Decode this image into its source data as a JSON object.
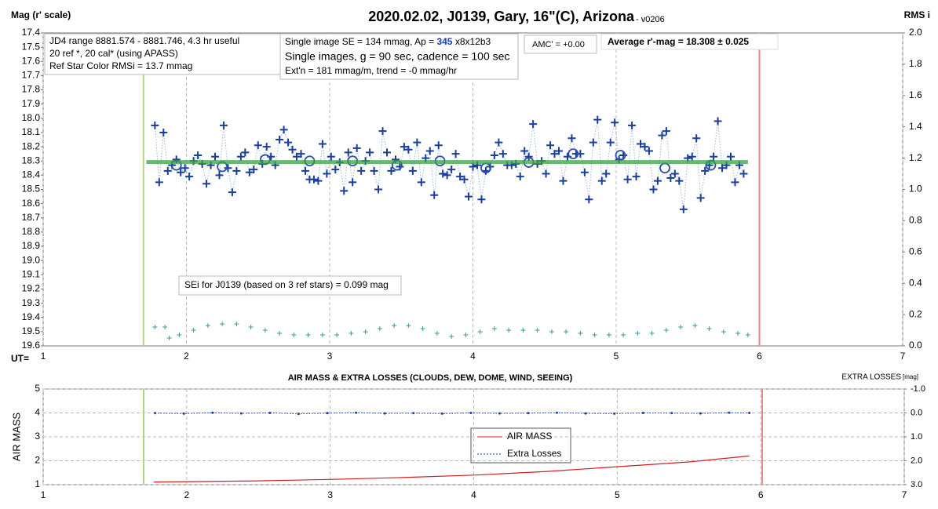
{
  "chart_data": [
    {
      "type": "scatter",
      "title": "2020.02.02, J0139, Gary, 16\"(C), Arizona",
      "subtitle": " - v0206",
      "y_label": "Mag (r' scale)",
      "y2_label": "RMS i",
      "x_label": "UT=",
      "xlim": [
        1,
        7
      ],
      "xticks": [
        1,
        2,
        3,
        4,
        5,
        6,
        7
      ],
      "ylim": [
        17.4,
        19.6
      ],
      "y_inverted": true,
      "yticks": [
        17.4,
        17.5,
        17.6,
        17.7,
        17.8,
        17.9,
        {
          "value": 18,
          "label": "18.0"
        },
        18.1,
        18.2,
        18.3,
        18.4,
        18.5,
        18.6,
        18.7,
        18.8,
        18.9,
        {
          "value": 19,
          "label": "19.0"
        },
        19.1,
        19.2,
        19.3,
        19.4,
        19.5,
        19.6
      ],
      "y2lim": [
        0,
        2
      ],
      "y2_inverted": false,
      "y2ticks": [
        {
          "value": 0,
          "label": "0.0"
        },
        0.2,
        0.4,
        0.6,
        0.8,
        {
          "value": 1,
          "label": "1.0"
        },
        1.2,
        1.4,
        1.6,
        1.8,
        {
          "value": 2,
          "label": "2.0"
        }
      ],
      "xgrid": true,
      "ygrid": false,
      "vlines": [
        {
          "x": 1.7,
          "color": "#a8d88a"
        },
        {
          "x": 6.0,
          "color": "#e88a8a"
        }
      ],
      "annotations": {
        "jd_range": "JD4 range 8881.574 - 8881.746, 4.3 hr useful",
        "refs": "20 ref *, 20 cal* (using APASS)",
        "color_rms": "Ref Star Color RMSi = 13.7 mmag",
        "se_a": "Single image SE = 134 mmag, Ap = ",
        "se_b": "345",
        "se_c": " x8x12b3",
        "single": "Single images, g = 90 sec, cadence = 100 sec",
        "ext": "Ext'n = 181 mmag/m, trend = -0 mmag/hr",
        "amc": "AMC' = +0.00",
        "average": "Average r'-mag =  18.308 ± 0.025",
        "sei": "SEi for J0139 (based on 3 ref stars) = 0.099 mag"
      },
      "series": [
        {
          "color": "#1a3f9a",
          "marker": "plus",
          "line": "dotted",
          "line_color": "#9bb8e0",
          "x": [
            1.78,
            1.81,
            1.84,
            1.87,
            1.9,
            1.93,
            1.96,
            1.99,
            2.02,
            2.05,
            2.08,
            2.11,
            2.14,
            2.17,
            2.2,
            2.23,
            2.26,
            2.29,
            2.32,
            2.35,
            2.38,
            2.41,
            2.44,
            2.47,
            2.5,
            2.53,
            2.56,
            2.59,
            2.62,
            2.65,
            2.68,
            2.71,
            2.74,
            2.77,
            2.8,
            2.83,
            2.86,
            2.89,
            2.92,
            2.95,
            2.98,
            3.01,
            3.04,
            3.07,
            3.1,
            3.13,
            3.16,
            3.19,
            3.22,
            3.25,
            3.28,
            3.31,
            3.34,
            3.37,
            3.4,
            3.43,
            3.46,
            3.49,
            3.52,
            3.55,
            3.58,
            3.61,
            3.64,
            3.67,
            3.7,
            3.73,
            3.76,
            3.79,
            3.82,
            3.85,
            3.88,
            3.91,
            3.94,
            3.97,
            4.0,
            4.03,
            4.06,
            4.09,
            4.12,
            4.15,
            4.18,
            4.21,
            4.24,
            4.27,
            4.3,
            4.33,
            4.36,
            4.39,
            4.42,
            4.45,
            4.48,
            4.51,
            4.54,
            4.57,
            4.6,
            4.63,
            4.66,
            4.69,
            4.72,
            4.75,
            4.78,
            4.81,
            4.84,
            4.87,
            4.9,
            4.93,
            4.96,
            4.99,
            5.02,
            5.05,
            5.08,
            5.11,
            5.14,
            5.17,
            5.2,
            5.23,
            5.26,
            5.29,
            5.32,
            5.35,
            5.38,
            5.41,
            5.44,
            5.47,
            5.5,
            5.53,
            5.56,
            5.59,
            5.62,
            5.65,
            5.68,
            5.71,
            5.74,
            5.77,
            5.8,
            5.83,
            5.86,
            5.89
          ],
          "values": [
            18.05,
            18.45,
            18.1,
            18.37,
            18.33,
            18.29,
            18.38,
            18.35,
            18.41,
            18.3,
            18.26,
            18.32,
            18.46,
            18.33,
            18.27,
            18.4,
            18.05,
            18.35,
            18.52,
            18.37,
            18.27,
            18.24,
            18.38,
            18.36,
            18.19,
            18.32,
            18.2,
            18.27,
            18.33,
            18.15,
            18.08,
            18.17,
            18.22,
            18.27,
            18.25,
            18.37,
            18.43,
            18.43,
            18.44,
            18.18,
            18.39,
            18.27,
            18.36,
            18.31,
            18.51,
            18.24,
            18.45,
            18.21,
            18.37,
            18.3,
            18.24,
            18.37,
            18.5,
            18.09,
            18.24,
            18.37,
            18.29,
            18.34,
            18.2,
            18.22,
            18.37,
            18.17,
            18.45,
            18.28,
            18.23,
            18.54,
            18.19,
            18.39,
            18.4,
            18.36,
            18.25,
            18.41,
            18.43,
            18.55,
            18.34,
            18.33,
            18.57,
            18.37,
            18.34,
            18.26,
            18.17,
            18.25,
            18.33,
            18.33,
            18.32,
            18.41,
            18.23,
            18.27,
            18.04,
            18.32,
            18.3,
            18.39,
            18.19,
            18.25,
            18.23,
            18.44,
            18.27,
            18.14,
            18.25,
            18.25,
            18.38,
            18.57,
            18.17,
            18.01,
            18.44,
            18.39,
            18.17,
            18.03,
            18.29,
            18.26,
            18.43,
            18.05,
            18.41,
            18.18,
            18.2,
            18.23,
            18.5,
            18.44,
            18.12,
            18.09,
            18.42,
            18.39,
            18.44,
            18.64,
            18.28,
            18.27,
            18.14,
            18.56,
            18.37,
            18.33,
            18.27,
            18.02,
            18.35,
            18.33,
            18.27,
            18.45,
            18.33,
            18.39
          ]
        },
        {
          "color": "#2a4fb0",
          "marker": "circle",
          "x": [
            1.93,
            2.25,
            2.55,
            2.86,
            3.16,
            3.47,
            3.77,
            4.09,
            4.39,
            4.7,
            5.03,
            5.34,
            5.66
          ],
          "values": [
            18.33,
            18.34,
            18.29,
            18.3,
            18.3,
            18.33,
            18.3,
            18.35,
            18.31,
            18.25,
            18.26,
            18.35,
            18.33
          ]
        },
        {
          "color": "#3aa040",
          "marker": "none",
          "line": "solid",
          "width": 5,
          "x": [
            1.72,
            5.92
          ],
          "values": [
            18.308,
            18.308
          ]
        },
        {
          "color": "#3a9a9a",
          "marker": "smallplus",
          "axis": "y2",
          "x": [
            1.78,
            1.85,
            1.88,
            1.95,
            2.05,
            2.15,
            2.25,
            2.35,
            2.45,
            2.55,
            2.65,
            2.75,
            2.85,
            2.95,
            3.05,
            3.15,
            3.25,
            3.35,
            3.45,
            3.55,
            3.65,
            3.75,
            3.85,
            3.95,
            4.05,
            4.15,
            4.25,
            4.35,
            4.45,
            4.55,
            4.65,
            4.75,
            4.85,
            4.95,
            5.05,
            5.15,
            5.25,
            5.35,
            5.45,
            5.55,
            5.65,
            5.75,
            5.85,
            5.92
          ],
          "values": [
            0.12,
            0.12,
            0.05,
            0.07,
            0.1,
            0.13,
            0.14,
            0.14,
            0.12,
            0.1,
            0.08,
            0.07,
            0.07,
            0.07,
            0.07,
            0.08,
            0.09,
            0.11,
            0.13,
            0.13,
            0.11,
            0.08,
            0.06,
            0.07,
            0.09,
            0.11,
            0.1,
            0.1,
            0.1,
            0.09,
            0.09,
            0.08,
            0.07,
            0.07,
            0.07,
            0.08,
            0.08,
            0.1,
            0.12,
            0.13,
            0.11,
            0.09,
            0.08,
            0.07
          ]
        }
      ]
    },
    {
      "type": "line",
      "title": "AIR MASS & EXTRA LOSSES (CLOUDS, DEW, DOME, WIND, SEEING)",
      "y_label": "AIR MASS",
      "y2_label": "EXTRA LOSSES",
      "y2_unit": "[mag]",
      "xlim": [
        1,
        7
      ],
      "xticks": [
        1,
        2,
        3,
        4,
        5,
        6,
        7
      ],
      "ylim": [
        1,
        5
      ],
      "yticks": [
        1,
        2,
        3,
        4,
        5
      ],
      "y_inverted": false,
      "y2lim": [
        -1,
        3
      ],
      "y2_inverted": true,
      "y2ticks": [
        {
          "value": -1,
          "label": "-1.0"
        },
        {
          "value": 0,
          "label": "0.0"
        },
        {
          "value": 1,
          "label": "1.0"
        },
        {
          "value": 2,
          "label": "2.0"
        },
        {
          "value": 3,
          "label": "3.0"
        }
      ],
      "xgrid": true,
      "ygrid": true,
      "vlines": [
        {
          "x": 1.7,
          "color": "#a8d88a"
        },
        {
          "x": 6.01,
          "color": "#e88a8a"
        }
      ],
      "series": [
        {
          "name": "AIR MASS",
          "color": "#d02020",
          "marker": "none",
          "line": "solid",
          "width": 1.2,
          "x": [
            1.77,
            2.5,
            3.0,
            3.5,
            4.0,
            4.5,
            5.0,
            5.5,
            5.92
          ],
          "values": [
            1.11,
            1.16,
            1.22,
            1.3,
            1.4,
            1.55,
            1.75,
            1.95,
            2.2
          ]
        },
        {
          "name": "Extra Losses",
          "color": "#1a3f9a",
          "marker": "dot",
          "line": "dotted",
          "axis": "y2",
          "x": [
            1.78,
            1.98,
            2.18,
            2.38,
            2.58,
            2.78,
            2.98,
            3.18,
            3.38,
            3.58,
            3.78,
            3.98,
            4.18,
            4.38,
            4.58,
            4.78,
            4.98,
            5.18,
            5.38,
            5.58,
            5.78,
            5.92
          ],
          "values": [
            0.01,
            0.03,
            -0.01,
            0.02,
            0.0,
            0.04,
            0.01,
            -0.01,
            0.02,
            0.01,
            0.03,
            0.0,
            0.02,
            0.01,
            -0.01,
            0.02,
            0.03,
            0.0,
            0.01,
            0.02,
            -0.01,
            0.0
          ]
        }
      ]
    }
  ]
}
